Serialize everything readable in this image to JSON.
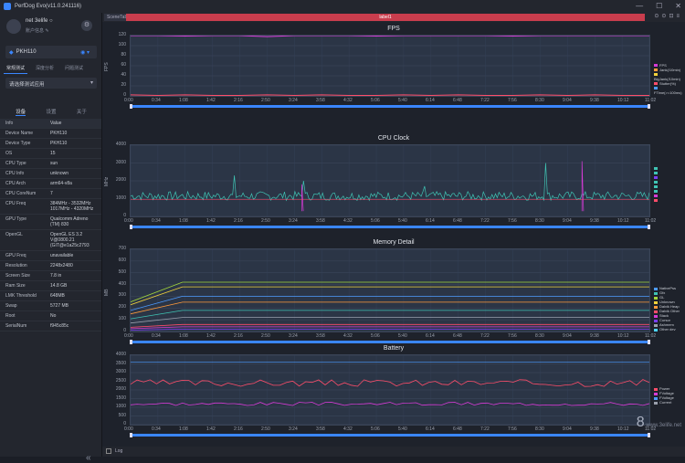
{
  "window": {
    "title": "PerfDog Evo(v11.0.241116)",
    "controls": [
      "—",
      "☐",
      "✕"
    ]
  },
  "profile": {
    "name": "net 3elife ○",
    "sub": "账户信息 ✎"
  },
  "device": {
    "name": "PKH110",
    "connection": "wifi-icon"
  },
  "mode_tabs": [
    "常规测试",
    "深度分析",
    "问题测试"
  ],
  "app_select": {
    "placeholder": "请选择测试应用"
  },
  "sub_tabs": [
    "设备",
    "设置",
    "关于"
  ],
  "info_header": {
    "k": "Info",
    "v": "Value"
  },
  "info": [
    {
      "k": "Device Name",
      "v": "PKH110"
    },
    {
      "k": "Device Type",
      "v": "PKH110"
    },
    {
      "k": "OS",
      "v": "15"
    },
    {
      "k": "CPU Type",
      "v": "sun"
    },
    {
      "k": "CPU Info",
      "v": "unknown"
    },
    {
      "k": "CPU Arch",
      "v": "arm64-v8a"
    },
    {
      "k": "CPU CoreNum",
      "v": "7"
    },
    {
      "k": "CPU Freq",
      "v": "384MHz - 3532MHz\n1017MHz - 4320MHz"
    },
    {
      "k": "GPU Type",
      "v": "Qualcomm Adreno\n(TM) 830"
    },
    {
      "k": "OpenGL",
      "v": "OpenGL ES 3.2\nV@0800.21\n(GIT@e1a25c2793"
    },
    {
      "k": "GPU Freq",
      "v": "unavailable"
    },
    {
      "k": "Resolution",
      "v": "2248x2480"
    },
    {
      "k": "Screen Size",
      "v": "7.8 in"
    },
    {
      "k": "Ram Size",
      "v": "14.8 GB"
    },
    {
      "k": "LMK Threshold",
      "v": "648MB"
    },
    {
      "k": "Swap",
      "v": "5727 MB"
    },
    {
      "k": "Root",
      "v": "No"
    },
    {
      "k": "SerialNum",
      "v": "f945c85c"
    }
  ],
  "scene": {
    "label": "SceneTab",
    "label_bar": "label1",
    "icons": "⊙⊙⊡≡"
  },
  "x_ticks": [
    "0:00",
    "0:34",
    "1:08",
    "1:42",
    "2:16",
    "2:50",
    "3:24",
    "3:58",
    "4:32",
    "5:06",
    "5:40",
    "6:14",
    "6:48",
    "7:22",
    "7:56",
    "8:30",
    "9:04",
    "9:38",
    "10:12",
    "11:02"
  ],
  "bottom": {
    "log_label": "Log"
  },
  "watermark": {
    "mark": "8",
    "text": "www.3elife.net"
  },
  "colors": {
    "fps": "#d63bd6",
    "cpu": "#3fc4b4",
    "accent": "#3a86ff",
    "label": "#c93d4d"
  },
  "chart_data": [
    {
      "type": "line",
      "title": "FPS",
      "ylabel": "FPS",
      "ylim": [
        0,
        120
      ],
      "yticks": [
        0,
        20,
        40,
        60,
        80,
        100,
        120
      ],
      "series": [
        {
          "color": "#d63bd6",
          "values": [
            120,
            120,
            119,
            120,
            120,
            118,
            120,
            120,
            120,
            119,
            120,
            120,
            120,
            120,
            119,
            120,
            120,
            120,
            120,
            120
          ]
        },
        {
          "color": "#ff4d6a",
          "values": [
            2,
            1,
            2,
            1,
            1,
            2,
            1,
            2,
            1,
            1,
            2,
            1,
            2,
            1,
            1,
            2,
            1,
            2,
            1,
            1
          ]
        }
      ],
      "legend": [
        "FPS",
        "Jank(/10min)",
        "BigJank(/10min)",
        "Stutter(%)",
        "FTime(>=100ms)"
      ],
      "legend_colors": [
        "#d63bd6",
        "#ff9a3b",
        "#f2d23b",
        "#ff4d6a",
        "#4d9bff"
      ]
    },
    {
      "type": "line",
      "title": "CPU Clock",
      "ylabel": "MHz",
      "ylim": [
        0,
        4000
      ],
      "yticks": [
        0,
        1000,
        2000,
        3000,
        4000
      ],
      "legend_colors": [
        "#3fc4b4",
        "#3fc4b4",
        "#7a3ff2",
        "#3fc4b4",
        "#3fc4b4",
        "#3fc4b4",
        "#d63bd6",
        "#ff4d6a"
      ]
    },
    {
      "type": "line",
      "title": "Memory Detail",
      "ylabel": "MB",
      "ylim": [
        0,
        700
      ],
      "yticks": [
        0,
        100,
        200,
        300,
        400,
        500,
        600,
        700
      ],
      "legend": [
        "NativePss",
        "Gfx",
        "GL",
        "Unknown",
        "Dalvik Heap",
        "Dalvik Other",
        "Stack",
        "Cursor",
        "Ashmem",
        "Other dev"
      ],
      "legend_colors": [
        "#4d9bff",
        "#3fc4b4",
        "#a3d63b",
        "#f2d23b",
        "#ff9a3b",
        "#ff4d6a",
        "#d63bd6",
        "#7a3ff2",
        "#9aa0ad",
        "#4dd6ff"
      ]
    },
    {
      "type": "line",
      "title": "Battery",
      "ylim": [
        0,
        4000
      ],
      "yticks": [
        0,
        500,
        1000,
        1500,
        2000,
        2500,
        3000,
        3500,
        4000
      ],
      "legend": [
        "Power",
        "FVoltage",
        "FVoltage",
        "Current"
      ],
      "legend_colors": [
        "#ff4d6a",
        "#d63bd6",
        "#4d9bff",
        "#9aa0ad"
      ]
    }
  ]
}
